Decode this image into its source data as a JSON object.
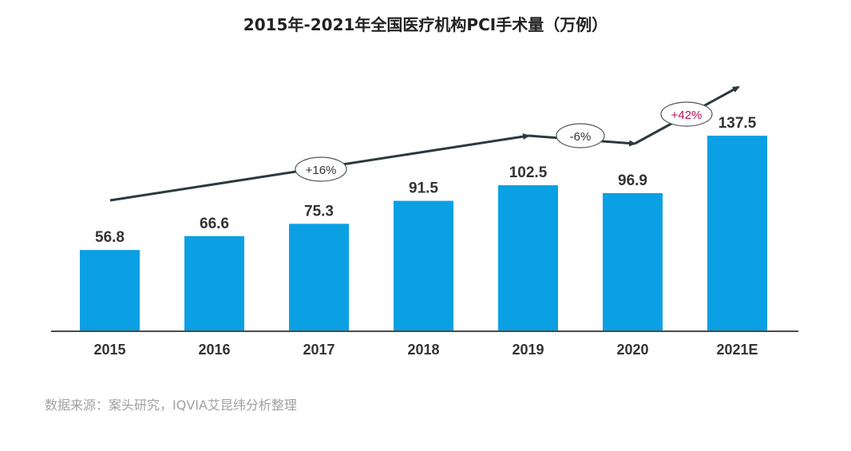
{
  "chart_data": {
    "type": "bar",
    "title": "2015年-2021年全国医疗机构PCI手术量（万例）",
    "categories": [
      "2015",
      "2016",
      "2017",
      "2018",
      "2019",
      "2020",
      "2021E"
    ],
    "values": [
      56.8,
      66.6,
      75.3,
      91.5,
      102.5,
      96.9,
      137.5
    ],
    "value_labels": [
      "56.8",
      "66.6",
      "75.3",
      "91.5",
      "102.5",
      "96.9",
      "137.5"
    ],
    "xlabel": "",
    "ylabel": "",
    "ylim": [
      0,
      140
    ],
    "grid": false,
    "bar_color": "#0aa0e3",
    "annotations": [
      {
        "text": "+16%",
        "color": "#333333"
      },
      {
        "text": "-6%",
        "color": "#333333"
      },
      {
        "text": "+42%",
        "color": "#b3135a"
      }
    ],
    "trend_color": "#2b3a3e",
    "source": "数据来源：案头研究，IQVIA艾昆纬分析整理"
  }
}
